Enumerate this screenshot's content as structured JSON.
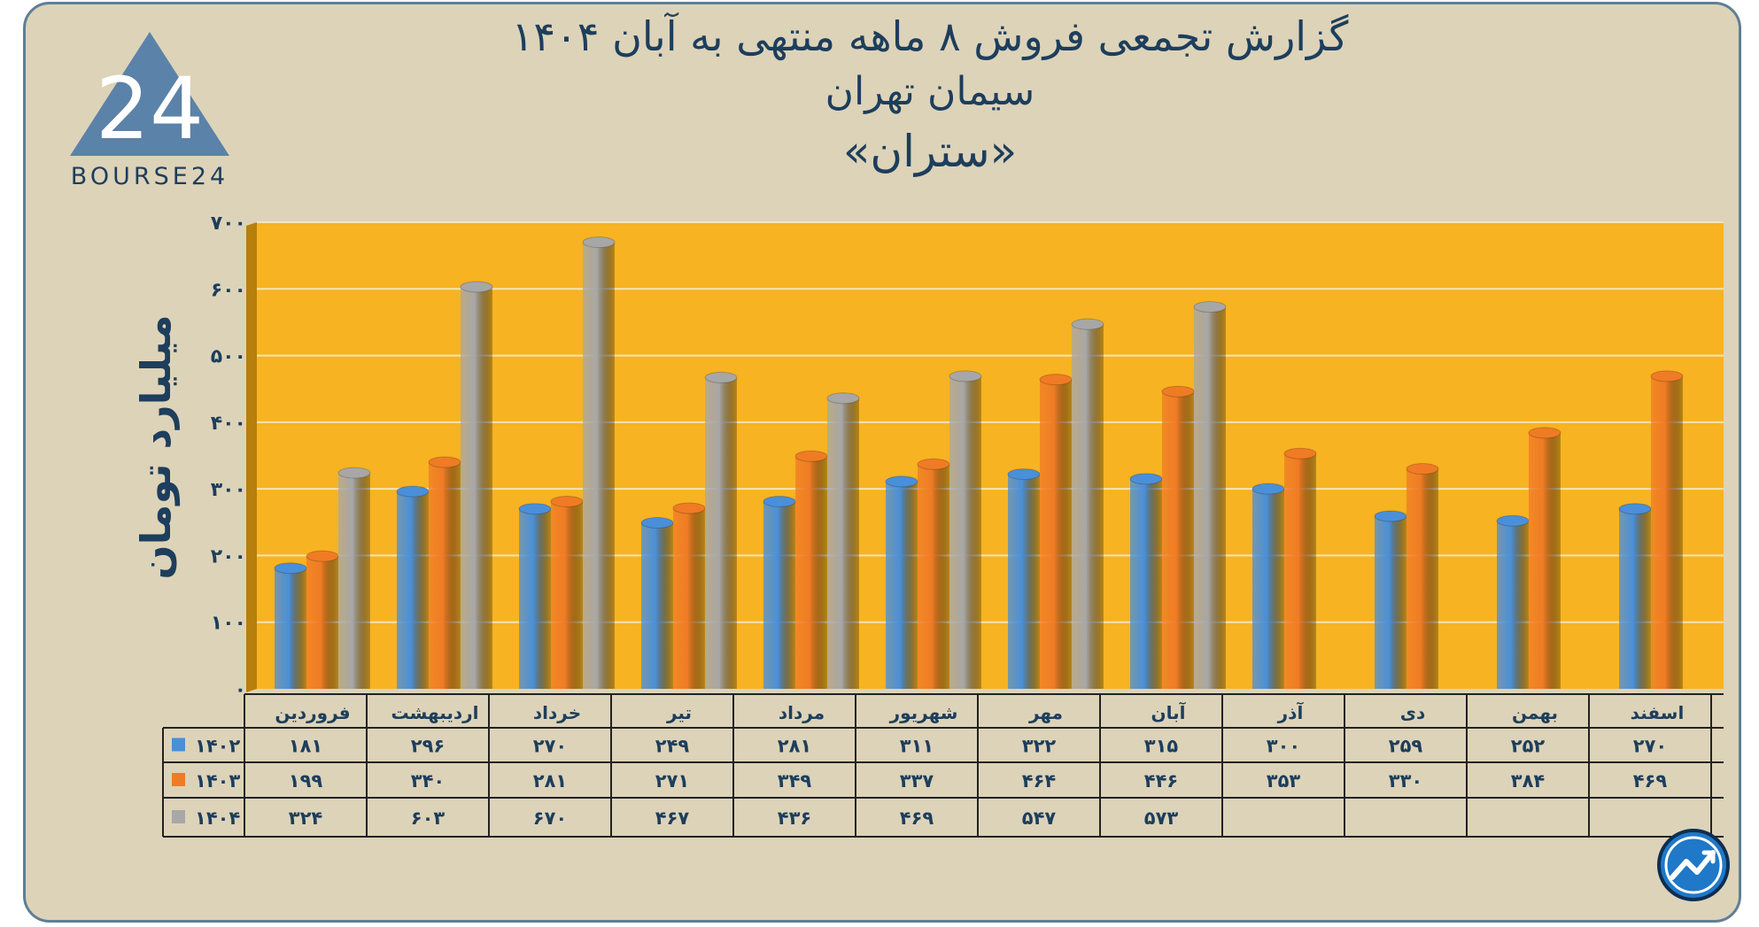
{
  "header": {
    "title_line1": "گزارش تجمعی فروش ۸ ماهه منتهی به آبان ۱۴۰۴",
    "title_line2": "سیمان تهران",
    "title_line3": "«ستران»"
  },
  "logo": {
    "text": "BOURSE24",
    "mark": "24"
  },
  "colors": {
    "background": "#ddd3b9",
    "plot_area": "#f7b321",
    "series_1402": "#4a8fd9",
    "series_1403": "#f07b25",
    "series_1404": "#a7a7a7",
    "text": "#1d3e5c"
  },
  "chart_data": {
    "type": "bar",
    "ylabel": "میلیارد تومان",
    "ylim": [
      0,
      700
    ],
    "y_ticks": [
      "۰",
      "۱۰۰",
      "۲۰۰",
      "۳۰۰",
      "۴۰۰",
      "۵۰۰",
      "۶۰۰",
      "۷۰۰"
    ],
    "grid": true,
    "categories": [
      "فروردین",
      "اردیبهشت",
      "خرداد",
      "تیر",
      "مرداد",
      "شهریور",
      "مهر",
      "آبان",
      "آذر",
      "دی",
      "بهمن",
      "اسفند"
    ],
    "series": [
      {
        "name": "۱۴۰۲",
        "color": "#4a8fd9",
        "values": [
          181,
          296,
          270,
          249,
          281,
          311,
          322,
          315,
          300,
          259,
          252,
          270
        ],
        "labels": [
          "۱۸۱",
          "۲۹۶",
          "۲۷۰",
          "۲۴۹",
          "۲۸۱",
          "۳۱۱",
          "۳۲۲",
          "۳۱۵",
          "۳۰۰",
          "۲۵۹",
          "۲۵۲",
          "۲۷۰"
        ]
      },
      {
        "name": "۱۴۰۳",
        "color": "#f07b25",
        "values": [
          199,
          340,
          281,
          271,
          349,
          337,
          464,
          446,
          353,
          330,
          384,
          469
        ],
        "labels": [
          "۱۹۹",
          "۳۴۰",
          "۲۸۱",
          "۲۷۱",
          "۳۴۹",
          "۳۳۷",
          "۴۶۴",
          "۴۴۶",
          "۳۵۳",
          "۳۳۰",
          "۳۸۴",
          "۴۶۹"
        ]
      },
      {
        "name": "۱۴۰۴",
        "color": "#a7a7a7",
        "values": [
          324,
          603,
          670,
          467,
          436,
          469,
          547,
          573,
          null,
          null,
          null,
          null
        ],
        "labels": [
          "۳۲۴",
          "۶۰۳",
          "۶۷۰",
          "۴۶۷",
          "۴۳۶",
          "۴۶۹",
          "۵۴۷",
          "۵۷۳",
          "",
          "",
          "",
          ""
        ]
      }
    ]
  }
}
